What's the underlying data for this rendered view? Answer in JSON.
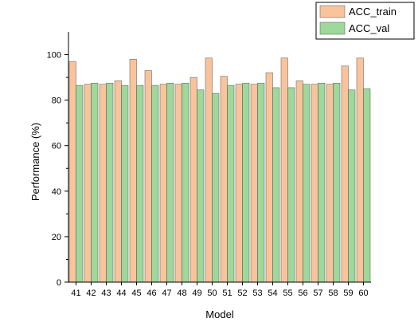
{
  "chart_data": {
    "type": "bar",
    "xlabel": "Model",
    "ylabel": "Performance (%)",
    "ylim": [
      0,
      110
    ],
    "yticks": [
      0,
      20,
      40,
      60,
      80,
      100
    ],
    "grid": false,
    "legend_position": "top-right",
    "categories": [
      "41",
      "42",
      "43",
      "44",
      "45",
      "46",
      "47",
      "48",
      "49",
      "50",
      "51",
      "52",
      "53",
      "54",
      "55",
      "56",
      "57",
      "58",
      "59",
      "60"
    ],
    "series": [
      {
        "name": "ACC_train",
        "color": "#f9c49b",
        "values": [
          97,
          87,
          87,
          88.5,
          98,
          93,
          87,
          87,
          90,
          98.5,
          90.5,
          87,
          87,
          92,
          98.5,
          88.5,
          87,
          87,
          95,
          98.5
        ]
      },
      {
        "name": "ACC_val",
        "color": "#9ed89b",
        "values": [
          86.5,
          87.5,
          87.5,
          86.5,
          86.5,
          86.5,
          87.5,
          87.5,
          84.5,
          83,
          86.5,
          87.5,
          87.5,
          85.5,
          85.5,
          87,
          87.5,
          87.5,
          84.5,
          85
        ]
      }
    ]
  }
}
